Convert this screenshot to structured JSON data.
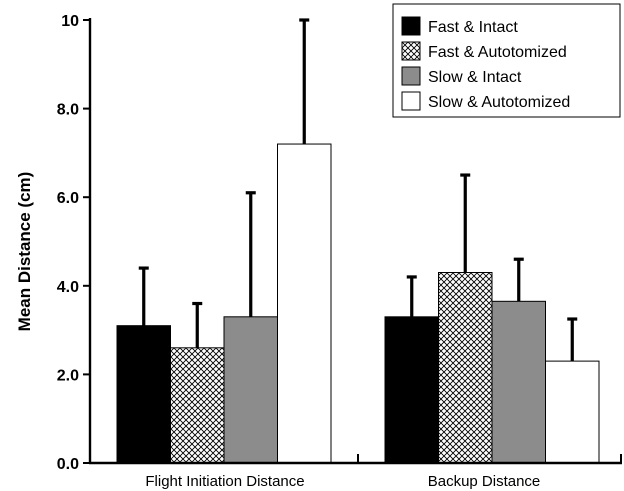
{
  "chart_data": {
    "type": "bar",
    "categories": [
      "Flight Initiation Distance",
      "Backup Distance"
    ],
    "series": [
      {
        "name": "Fast & Intact",
        "values": [
          3.1,
          3.3
        ],
        "error_upper": [
          4.4,
          4.2
        ],
        "fill": "#000000",
        "pattern": "solid"
      },
      {
        "name": "Fast & Autotomized",
        "values": [
          2.6,
          4.3
        ],
        "error_upper": [
          3.6,
          6.5
        ],
        "fill": "#ffffff",
        "pattern": "crosshatch"
      },
      {
        "name": "Slow & Intact",
        "values": [
          3.3,
          3.65
        ],
        "error_upper": [
          6.1,
          4.6
        ],
        "fill": "#8c8c8c",
        "pattern": "solid"
      },
      {
        "name": "Slow & Autotomized",
        "values": [
          7.2,
          2.3
        ],
        "error_upper": [
          10.0,
          3.25
        ],
        "fill": "#ffffff",
        "pattern": "solid"
      }
    ],
    "ylabel": "Mean Distance (cm)",
    "ylim": [
      0,
      10
    ],
    "yticks": [
      0,
      2,
      4,
      6,
      8,
      10
    ],
    "ytick_labels": [
      "0.0",
      "2.0",
      "4.0",
      "6.0",
      "8.0",
      "10"
    ],
    "grid": false,
    "legend_position": "top-right",
    "error_bars": "upper"
  }
}
